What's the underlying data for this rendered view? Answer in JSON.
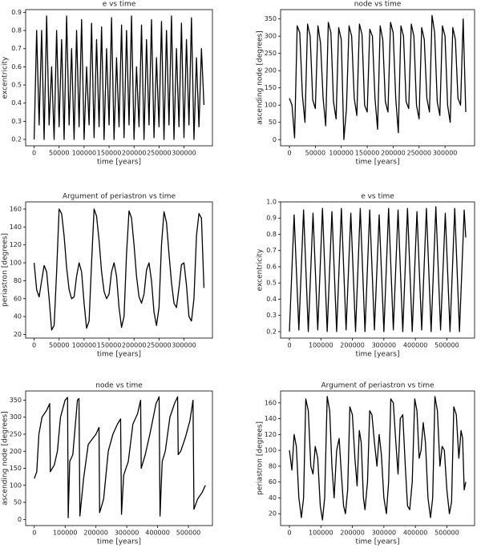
{
  "chart_data": [
    {
      "type": "line",
      "title": "e vs time",
      "xlabel": "time [years]",
      "ylabel": "excentricity",
      "color": "#000000",
      "x": [
        0,
        5000,
        10000,
        15000,
        20000,
        25000,
        30000,
        35000,
        40000,
        45000,
        50000,
        55000,
        60000,
        65000,
        70000,
        75000,
        80000,
        85000,
        90000,
        95000,
        100000,
        105000,
        110000,
        115000,
        120000,
        125000,
        130000,
        135000,
        140000,
        145000,
        150000,
        155000,
        160000,
        165000,
        170000,
        175000,
        180000,
        185000,
        190000,
        195000,
        200000,
        205000,
        210000,
        215000,
        220000,
        225000,
        230000,
        235000,
        240000,
        245000,
        250000,
        255000,
        260000,
        265000,
        270000,
        275000,
        280000,
        285000,
        290000,
        295000,
        300000,
        305000,
        310000,
        315000,
        320000,
        325000,
        330000,
        335000,
        340000
      ],
      "values": [
        0.2,
        0.8,
        0.28,
        0.8,
        0.2,
        0.88,
        0.28,
        0.6,
        0.2,
        0.8,
        0.27,
        0.75,
        0.2,
        0.88,
        0.28,
        0.7,
        0.2,
        0.8,
        0.27,
        0.86,
        0.2,
        0.6,
        0.28,
        0.84,
        0.21,
        0.75,
        0.27,
        0.82,
        0.2,
        0.7,
        0.28,
        0.87,
        0.2,
        0.65,
        0.27,
        0.83,
        0.21,
        0.8,
        0.28,
        0.88,
        0.2,
        0.6,
        0.27,
        0.83,
        0.2,
        0.75,
        0.28,
        0.86,
        0.21,
        0.65,
        0.27,
        0.85,
        0.2,
        0.8,
        0.28,
        0.88,
        0.2,
        0.7,
        0.27,
        0.84,
        0.21,
        0.75,
        0.28,
        0.87,
        0.2,
        0.65,
        0.27,
        0.7,
        0.39
      ],
      "xlim": [
        -17000,
        357000
      ],
      "ylim": [
        0.165,
        0.915
      ],
      "xticks": [
        0,
        50000,
        100000,
        150000,
        200000,
        250000,
        300000
      ],
      "yticks": [
        0.2,
        0.3,
        0.4,
        0.5,
        0.6,
        0.7,
        0.8,
        0.9
      ]
    },
    {
      "type": "line",
      "title": "node vs time",
      "xlabel": "time [years]",
      "ylabel": "ascending node [degrees]",
      "color": "#000000",
      "x": [
        0,
        5000,
        10000,
        15000,
        20000,
        25000,
        30000,
        35000,
        40000,
        45000,
        50000,
        55000,
        60000,
        65000,
        70000,
        75000,
        80000,
        85000,
        90000,
        95000,
        100000,
        105000,
        110000,
        115000,
        120000,
        125000,
        130000,
        135000,
        140000,
        145000,
        150000,
        155000,
        160000,
        165000,
        170000,
        175000,
        180000,
        185000,
        190000,
        195000,
        200000,
        205000,
        210000,
        215000,
        220000,
        225000,
        230000,
        235000,
        240000,
        245000,
        250000,
        255000,
        260000,
        265000,
        270000,
        275000,
        280000,
        285000,
        290000,
        295000,
        300000,
        305000,
        310000,
        315000,
        320000,
        325000,
        330000,
        335000,
        340000
      ],
      "values": [
        120,
        100,
        5,
        330,
        310,
        130,
        50,
        335,
        300,
        115,
        90,
        330,
        280,
        120,
        40,
        340,
        310,
        110,
        60,
        325,
        290,
        0,
        90,
        330,
        300,
        120,
        70,
        335,
        305,
        100,
        80,
        320,
        300,
        120,
        30,
        330,
        290,
        110,
        80,
        340,
        310,
        120,
        20,
        330,
        300,
        110,
        90,
        335,
        300,
        100,
        60,
        325,
        290,
        120,
        80,
        360,
        310,
        110,
        70,
        330,
        300,
        100,
        50,
        325,
        290,
        120,
        100,
        350,
        80
      ],
      "xlim": [
        -17000,
        357000
      ],
      "ylim": [
        -18,
        377
      ],
      "xticks": [
        0,
        50000,
        100000,
        150000,
        200000,
        250000,
        300000
      ],
      "yticks": [
        0,
        50,
        100,
        150,
        200,
        250,
        300,
        350
      ]
    },
    {
      "type": "line",
      "title": "Argument of periastron vs time",
      "xlabel": "time [years]",
      "ylabel": "periastron [degrees]",
      "color": "#000000",
      "x": [
        0,
        5000,
        10000,
        15000,
        20000,
        25000,
        30000,
        35000,
        40000,
        45000,
        50000,
        55000,
        60000,
        65000,
        70000,
        75000,
        80000,
        85000,
        90000,
        95000,
        100000,
        105000,
        110000,
        115000,
        120000,
        125000,
        130000,
        135000,
        140000,
        145000,
        150000,
        155000,
        160000,
        165000,
        170000,
        175000,
        180000,
        185000,
        190000,
        195000,
        200000,
        205000,
        210000,
        215000,
        220000,
        225000,
        230000,
        235000,
        240000,
        245000,
        250000,
        255000,
        260000,
        265000,
        270000,
        275000,
        280000,
        285000,
        290000,
        295000,
        300000,
        305000,
        310000,
        315000,
        320000,
        325000,
        330000,
        335000,
        340000
      ],
      "values": [
        100,
        70,
        62,
        80,
        97,
        90,
        60,
        25,
        30,
        90,
        160,
        155,
        130,
        95,
        70,
        60,
        62,
        85,
        100,
        90,
        55,
        27,
        35,
        100,
        160,
        152,
        125,
        90,
        68,
        60,
        65,
        90,
        100,
        85,
        50,
        28,
        40,
        110,
        158,
        150,
        120,
        85,
        62,
        55,
        65,
        92,
        100,
        80,
        45,
        30,
        50,
        120,
        157,
        145,
        110,
        78,
        55,
        50,
        72,
        98,
        100,
        75,
        40,
        35,
        60,
        130,
        155,
        150,
        72
      ],
      "xlim": [
        -17000,
        357000
      ],
      "ylim": [
        16,
        168
      ],
      "xticks": [
        0,
        50000,
        100000,
        150000,
        200000,
        250000,
        300000
      ],
      "yticks": [
        20,
        40,
        60,
        80,
        100,
        120,
        140,
        160
      ]
    },
    {
      "type": "line",
      "title": "e vs time",
      "xlabel": "time [years]",
      "ylabel": "excentricity",
      "color": "#000000",
      "x": [
        0,
        15000,
        30000,
        45000,
        60000,
        75000,
        90000,
        105000,
        120000,
        135000,
        150000,
        165000,
        180000,
        195000,
        210000,
        225000,
        240000,
        255000,
        270000,
        285000,
        300000,
        315000,
        330000,
        345000,
        360000,
        375000,
        390000,
        405000,
        420000,
        435000,
        450000,
        465000,
        480000,
        495000,
        510000,
        525000,
        540000,
        555000,
        560000
      ],
      "values": [
        0.2,
        0.92,
        0.21,
        0.95,
        0.2,
        0.93,
        0.21,
        0.96,
        0.2,
        0.94,
        0.2,
        0.96,
        0.21,
        0.93,
        0.2,
        0.96,
        0.2,
        0.95,
        0.21,
        0.92,
        0.2,
        0.96,
        0.21,
        0.95,
        0.2,
        0.96,
        0.2,
        0.94,
        0.21,
        0.96,
        0.2,
        0.97,
        0.21,
        0.93,
        0.2,
        0.96,
        0.2,
        0.95,
        0.78
      ],
      "xlim": [
        -28000,
        588000
      ],
      "ylim": [
        0.16,
        1.0
      ],
      "xticks": [
        0,
        100000,
        200000,
        300000,
        400000,
        500000
      ],
      "yticks": [
        0.2,
        0.3,
        0.4,
        0.5,
        0.6,
        0.7,
        0.8,
        0.9,
        {
          "value": 1,
          "label": "1.0"
        }
      ]
    },
    {
      "type": "line",
      "title": "node vs time",
      "xlabel": "time [years]",
      "ylabel": "ascending node [degrees]",
      "color": "#000000",
      "x": [
        0,
        8000,
        15000,
        25000,
        40000,
        50000,
        52000,
        65000,
        75000,
        85000,
        100000,
        108000,
        110000,
        115000,
        125000,
        140000,
        145000,
        148000,
        160000,
        175000,
        200000,
        210000,
        212000,
        225000,
        240000,
        255000,
        270000,
        280000,
        283000,
        290000,
        305000,
        320000,
        335000,
        345000,
        347000,
        360000,
        375000,
        395000,
        405000,
        408000,
        415000,
        425000,
        440000,
        455000,
        465000,
        467000,
        475000,
        490000,
        505000,
        515000,
        518000,
        530000,
        545000,
        555000
      ],
      "values": [
        120,
        140,
        250,
        300,
        320,
        340,
        140,
        160,
        200,
        300,
        350,
        358,
        5,
        170,
        190,
        350,
        355,
        10,
        120,
        220,
        250,
        270,
        20,
        60,
        200,
        250,
        280,
        295,
        15,
        130,
        170,
        280,
        310,
        350,
        150,
        190,
        250,
        340,
        360,
        10,
        170,
        200,
        300,
        340,
        360,
        190,
        200,
        240,
        290,
        350,
        30,
        60,
        80,
        100
      ],
      "xlim": [
        -28000,
        578000
      ],
      "ylim": [
        -18,
        377
      ],
      "xticks": [
        0,
        100000,
        200000,
        300000,
        400000,
        500000
      ],
      "yticks": [
        0,
        50,
        100,
        150,
        200,
        250,
        300,
        350
      ]
    },
    {
      "type": "line",
      "title": "Argument of periastron vs time",
      "xlabel": "time [years]",
      "ylabel": "periastron [degrees]",
      "color": "#000000",
      "x": [
        0,
        8000,
        15000,
        22000,
        30000,
        38000,
        45000,
        52000,
        60000,
        68000,
        75000,
        82000,
        90000,
        98000,
        105000,
        112000,
        120000,
        128000,
        135000,
        142000,
        150000,
        158000,
        165000,
        172000,
        178000,
        185000,
        192000,
        200000,
        208000,
        215000,
        222000,
        228000,
        235000,
        240000,
        248000,
        255000,
        262000,
        270000,
        278000,
        285000,
        292000,
        300000,
        308000,
        315000,
        322000,
        330000,
        338000,
        345000,
        352000,
        360000,
        368000,
        375000,
        382000,
        390000,
        398000,
        405000,
        412000,
        418000,
        425000,
        432000,
        440000,
        448000,
        455000,
        462000,
        470000,
        478000,
        485000,
        492000,
        500000,
        508000,
        515000,
        522000,
        530000,
        538000,
        545000,
        550000,
        555000,
        560000
      ],
      "values": [
        100,
        75,
        120,
        105,
        40,
        15,
        40,
        165,
        150,
        80,
        70,
        105,
        90,
        30,
        12,
        40,
        168,
        150,
        80,
        40,
        100,
        115,
        70,
        30,
        20,
        50,
        155,
        145,
        90,
        55,
        125,
        110,
        40,
        25,
        60,
        150,
        145,
        110,
        80,
        120,
        95,
        40,
        20,
        60,
        165,
        160,
        110,
        70,
        140,
        145,
        80,
        30,
        25,
        60,
        165,
        150,
        90,
        100,
        135,
        110,
        40,
        15,
        40,
        168,
        150,
        80,
        105,
        100,
        50,
        20,
        35,
        155,
        145,
        90,
        125,
        115,
        50,
        60
      ],
      "xlim": [
        -28000,
        588000
      ],
      "ylim": [
        5,
        175
      ],
      "xticks": [
        0,
        100000,
        200000,
        300000,
        400000,
        500000
      ],
      "yticks": [
        20,
        40,
        60,
        80,
        100,
        120,
        140,
        160
      ]
    }
  ]
}
